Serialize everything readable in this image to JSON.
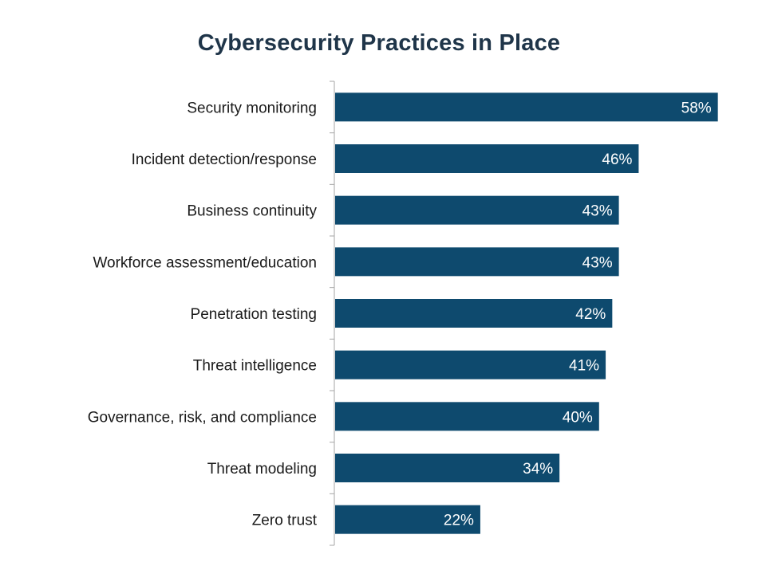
{
  "chart_data": {
    "type": "bar",
    "orientation": "horizontal",
    "title": "Cybersecurity Practices in Place",
    "categories": [
      "Security monitoring",
      "Incident detection/response",
      "Business continuity",
      "Workforce assessment/education",
      "Penetration testing",
      "Threat intelligence",
      "Governance, risk, and compliance",
      "Threat modeling",
      "Zero trust"
    ],
    "values": [
      58,
      46,
      43,
      43,
      42,
      41,
      40,
      34,
      22
    ],
    "value_labels": [
      "58%",
      "46%",
      "43%",
      "43%",
      "42%",
      "41%",
      "40%",
      "34%",
      "22%"
    ],
    "value_unit": "%",
    "xlim": [
      0,
      60
    ],
    "bar_color": "#0e4a6e",
    "label_color": "#ffffff",
    "grid": false,
    "legend": "none"
  }
}
